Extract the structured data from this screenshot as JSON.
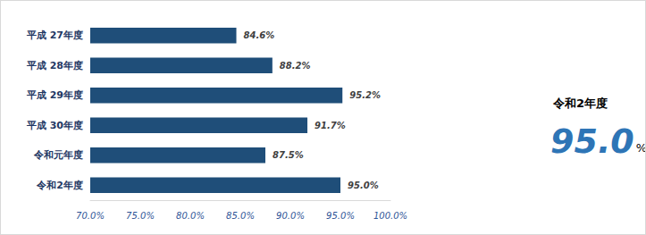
{
  "chart_data": {
    "type": "bar",
    "orientation": "horizontal",
    "categories": [
      "平成 27年度",
      "平成 28年度",
      "平成 29年度",
      "平成 30年度",
      "令和元年度",
      "令和2年度"
    ],
    "values": [
      84.6,
      88.2,
      95.2,
      91.7,
      87.5,
      95.0
    ],
    "value_labels": [
      "84.6%",
      "88.2%",
      "95.2%",
      "91.7%",
      "87.5%",
      "95.0%"
    ],
    "data_labels": true,
    "color": "#1f4e79",
    "xlim": [
      70,
      100
    ],
    "xticks": [
      {
        "value": 70,
        "label": "70.0%"
      },
      {
        "value": 75,
        "label": "75.0%"
      },
      {
        "value": 80,
        "label": "80.0%"
      },
      {
        "value": 85,
        "label": "85.0%"
      },
      {
        "value": 90,
        "label": "90.0%"
      },
      {
        "value": 95,
        "label": "95.0%"
      },
      {
        "value": 100,
        "label": "100.0%"
      }
    ],
    "grid": false,
    "annotation": {
      "label": "令和2年度",
      "value": "95.0",
      "unit": "%"
    }
  }
}
